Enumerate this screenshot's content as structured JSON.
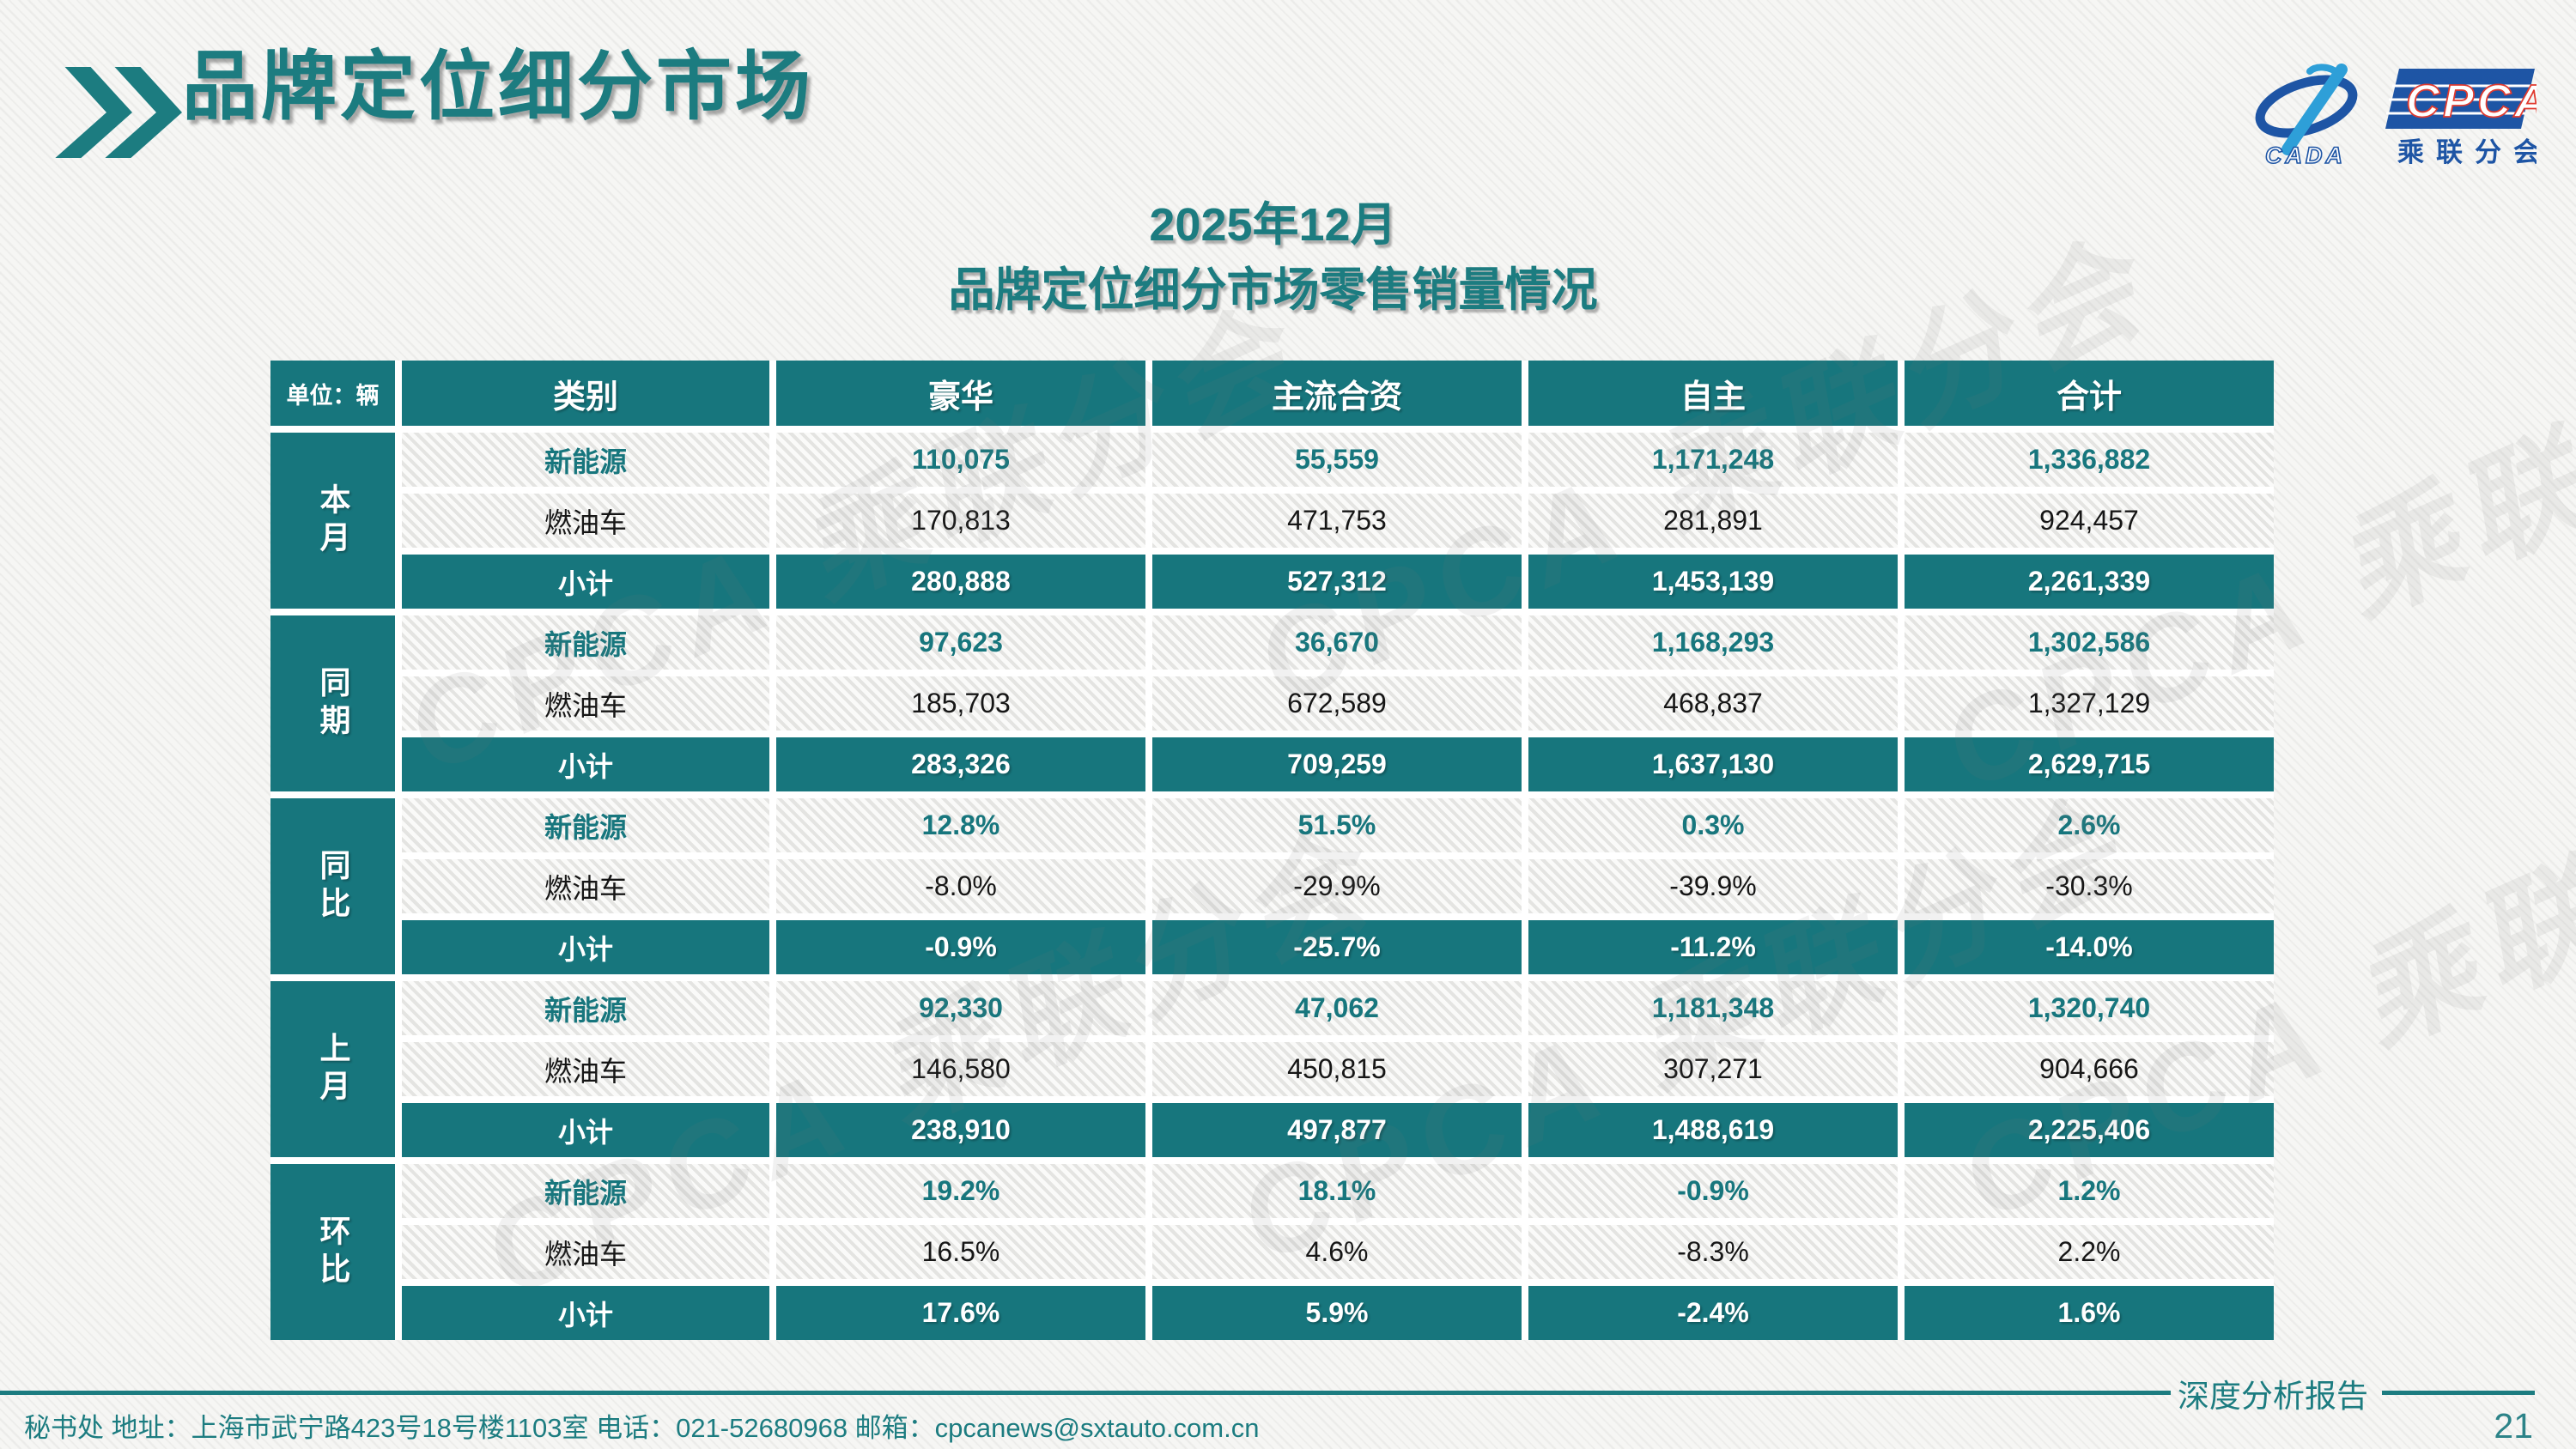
{
  "header": {
    "title": "品牌定位细分市场"
  },
  "logo": {
    "cada_text": "CADA",
    "cpca_text": "CPCA",
    "subtitle": "乘联分会"
  },
  "chart_data": {
    "type": "table",
    "title_line1": "2025年12月",
    "title_line2": "品牌定位细分市场零售销量情况",
    "unit_label": "单位：辆",
    "columns": [
      "类别",
      "豪华",
      "主流合资",
      "自主",
      "合计"
    ],
    "sections": [
      {
        "group": "本月",
        "rows": [
          {
            "category": "新能源",
            "style": "nev",
            "values": [
              "110,075",
              "55,559",
              "1,171,248",
              "1,336,882"
            ]
          },
          {
            "category": "燃油车",
            "style": "fuel",
            "values": [
              "170,813",
              "471,753",
              "281,891",
              "924,457"
            ]
          },
          {
            "category": "小计",
            "style": "subtotal",
            "values": [
              "280,888",
              "527,312",
              "1,453,139",
              "2,261,339"
            ]
          }
        ]
      },
      {
        "group": "同期",
        "rows": [
          {
            "category": "新能源",
            "style": "nev",
            "values": [
              "97,623",
              "36,670",
              "1,168,293",
              "1,302,586"
            ]
          },
          {
            "category": "燃油车",
            "style": "fuel",
            "values": [
              "185,703",
              "672,589",
              "468,837",
              "1,327,129"
            ]
          },
          {
            "category": "小计",
            "style": "subtotal",
            "values": [
              "283,326",
              "709,259",
              "1,637,130",
              "2,629,715"
            ]
          }
        ]
      },
      {
        "group": "同比",
        "rows": [
          {
            "category": "新能源",
            "style": "nev",
            "values": [
              "12.8%",
              "51.5%",
              "0.3%",
              "2.6%"
            ]
          },
          {
            "category": "燃油车",
            "style": "fuel",
            "values": [
              "-8.0%",
              "-29.9%",
              "-39.9%",
              "-30.3%"
            ]
          },
          {
            "category": "小计",
            "style": "subtotal",
            "values": [
              "-0.9%",
              "-25.7%",
              "-11.2%",
              "-14.0%"
            ]
          }
        ]
      },
      {
        "group": "上月",
        "rows": [
          {
            "category": "新能源",
            "style": "nev",
            "values": [
              "92,330",
              "47,062",
              "1,181,348",
              "1,320,740"
            ]
          },
          {
            "category": "燃油车",
            "style": "fuel",
            "values": [
              "146,580",
              "450,815",
              "307,271",
              "904,666"
            ]
          },
          {
            "category": "小计",
            "style": "subtotal",
            "values": [
              "238,910",
              "497,877",
              "1,488,619",
              "2,225,406"
            ]
          }
        ]
      },
      {
        "group": "环比",
        "rows": [
          {
            "category": "新能源",
            "style": "nev",
            "values": [
              "19.2%",
              "18.1%",
              "-0.9%",
              "1.2%"
            ]
          },
          {
            "category": "燃油车",
            "style": "fuel",
            "values": [
              "16.5%",
              "4.6%",
              "-8.3%",
              "2.2%"
            ]
          },
          {
            "category": "小计",
            "style": "subtotal",
            "values": [
              "17.6%",
              "5.9%",
              "-2.4%",
              "1.6%"
            ]
          }
        ]
      }
    ]
  },
  "watermark": {
    "text": "CPCA 乘联分会"
  },
  "footer": {
    "info": "秘书处   地址：上海市武宁路423号18号楼1103室  电话：021-52680968   邮箱：cpcanews@sxtauto.com.cn",
    "report_label": "深度分析报告",
    "page_number": "21"
  },
  "colors": {
    "teal": "#17767d",
    "title_teal": "#1c7c80",
    "logo_blue": "#1e55a5",
    "logo_light_blue": "#2e9fd8",
    "cpca_red": "#e03a2f"
  }
}
